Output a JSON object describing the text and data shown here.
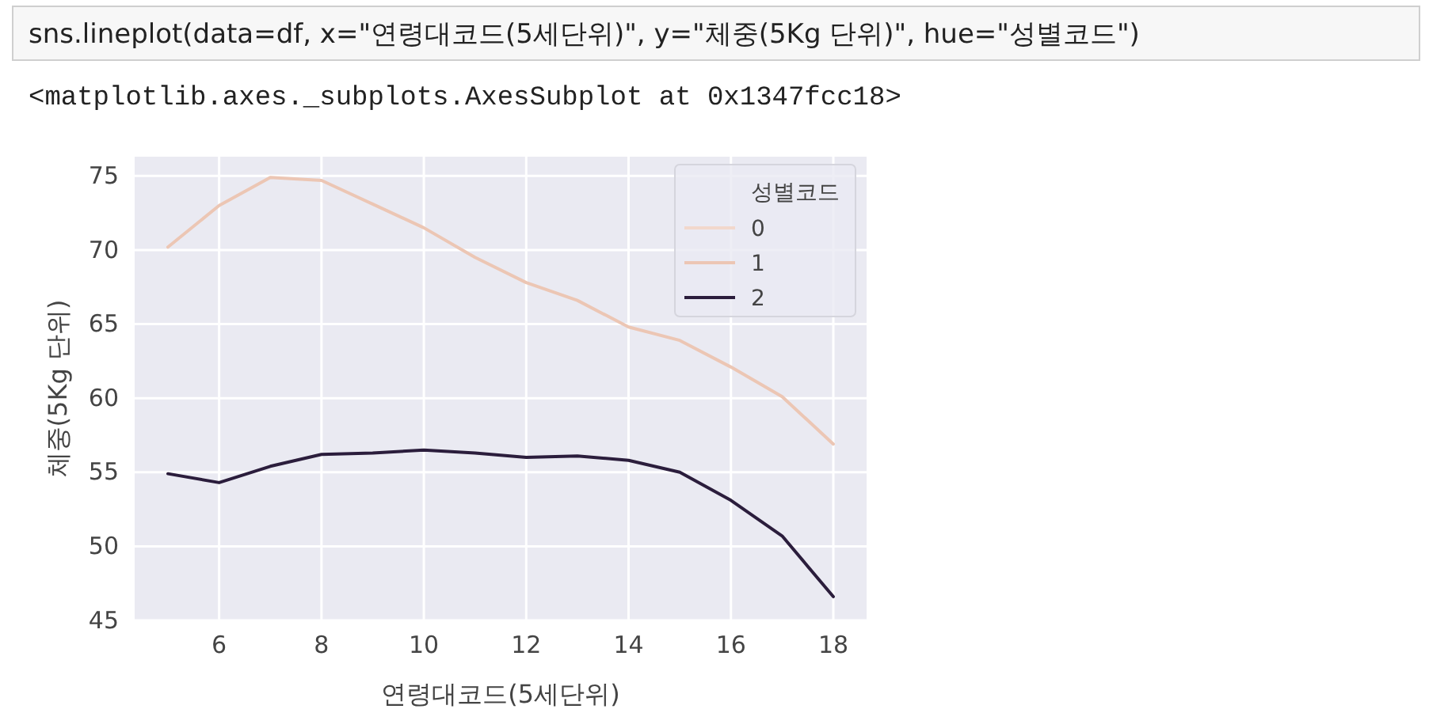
{
  "chart_data": {
    "type": "line",
    "annotations": [
      "sns.lineplot(data=df, x=\"연령대코드(5세단위)\", y=\"체중(5Kg 단위)\", hue=\"성별코드\")",
      "<matplotlib.axes._subplots.AxesSubplot at 0x1347fcc18>"
    ],
    "xlabel": "연령대코드(5세단위)",
    "ylabel": "체중(5Kg 단위)",
    "legend_title": "성별코드",
    "x": [
      5,
      6,
      7,
      8,
      9,
      10,
      11,
      12,
      13,
      14,
      15,
      16,
      17,
      18
    ],
    "series": [
      {
        "name": "0",
        "color": "#f2d8cc",
        "values": [
          null,
          null,
          null,
          null,
          null,
          null,
          null,
          null,
          null,
          null,
          null,
          null,
          null,
          null
        ]
      },
      {
        "name": "1",
        "color": "#ecc6b4",
        "values": [
          70.2,
          73.0,
          74.9,
          74.7,
          73.1,
          71.5,
          69.5,
          67.8,
          66.6,
          64.8,
          63.9,
          62.1,
          60.1,
          56.9
        ]
      },
      {
        "name": "2",
        "color": "#2b1d3c",
        "values": [
          54.9,
          54.3,
          55.4,
          56.2,
          56.3,
          56.5,
          56.3,
          56.0,
          56.1,
          55.8,
          55.0,
          53.1,
          50.7,
          46.6
        ]
      }
    ],
    "xlim": [
      4.35,
      18.65
    ],
    "xticks": [
      6,
      8,
      10,
      12,
      14,
      16,
      18
    ],
    "ylim": [
      45,
      76.3
    ],
    "yticks": [
      45,
      50,
      55,
      60,
      65,
      70,
      75
    ],
    "grid": true,
    "legend": "top right",
    "marker": "none",
    "line_style": "solid"
  }
}
